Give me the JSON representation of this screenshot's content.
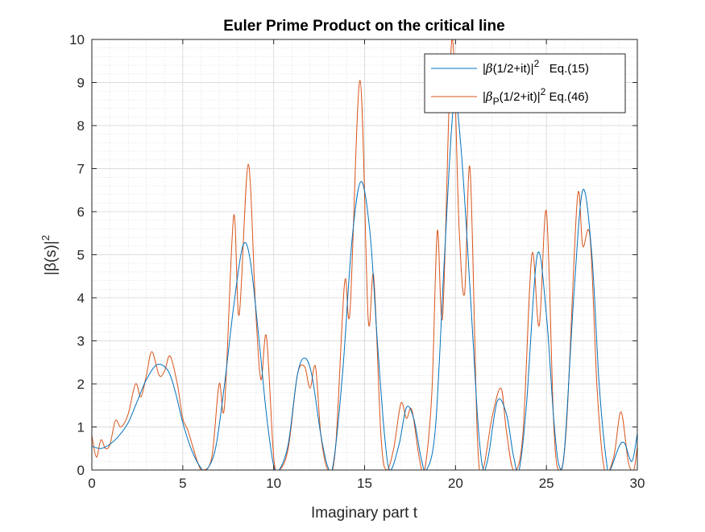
{
  "chart_data": {
    "type": "line",
    "title": "Euler Prime Product on the critical line",
    "xlabel": "Imaginary part t",
    "ylabel_main": "|β(s)|",
    "ylabel_sup": "2",
    "xlim": [
      0,
      30
    ],
    "ylim": [
      0,
      10
    ],
    "xticks": [
      0,
      5,
      10,
      15,
      20,
      25,
      30
    ],
    "yticks": [
      0,
      1,
      2,
      3,
      4,
      5,
      6,
      7,
      8,
      9,
      10
    ],
    "grid": true,
    "minor_grid": true,
    "legend_position": "top-right",
    "series": [
      {
        "name": "|β(1/2+it)|2   Eq.(15)",
        "legend_parts": {
          "pre": "|",
          "greek": "β",
          "mid": "(1/2+it)|",
          "sup": "2",
          "post": "   Eq.(15)"
        },
        "color": "#0072BD",
        "points": [
          [
            0,
            0.55
          ],
          [
            0.5,
            0.5
          ],
          [
            1.0,
            0.6
          ],
          [
            1.5,
            0.8
          ],
          [
            2.0,
            1.1
          ],
          [
            2.5,
            1.6
          ],
          [
            3.0,
            2.1
          ],
          [
            3.6,
            2.45
          ],
          [
            4.2,
            2.3
          ],
          [
            4.6,
            1.8
          ],
          [
            5.0,
            1.1
          ],
          [
            5.5,
            0.45
          ],
          [
            6.0,
            0.05
          ],
          [
            6.3,
            0.0
          ],
          [
            6.8,
            0.5
          ],
          [
            7.3,
            2.0
          ],
          [
            7.8,
            3.8
          ],
          [
            8.3,
            5.2
          ],
          [
            8.7,
            4.9
          ],
          [
            9.2,
            3.0
          ],
          [
            9.6,
            1.3
          ],
          [
            10.0,
            0.1
          ],
          [
            10.3,
            0.0
          ],
          [
            10.8,
            0.6
          ],
          [
            11.3,
            2.2
          ],
          [
            11.7,
            2.6
          ],
          [
            12.1,
            2.2
          ],
          [
            12.6,
            0.8
          ],
          [
            13.0,
            0.05
          ],
          [
            13.3,
            0.2
          ],
          [
            13.8,
            2.3
          ],
          [
            14.3,
            5.3
          ],
          [
            14.8,
            6.7
          ],
          [
            15.3,
            5.5
          ],
          [
            15.7,
            3.0
          ],
          [
            16.1,
            0.8
          ],
          [
            16.4,
            0.0
          ],
          [
            16.9,
            0.6
          ],
          [
            17.3,
            1.45
          ],
          [
            17.7,
            1.2
          ],
          [
            18.1,
            0.3
          ],
          [
            18.4,
            0.0
          ],
          [
            18.9,
            1.0
          ],
          [
            19.4,
            5.0
          ],
          [
            19.9,
            8.5
          ],
          [
            20.3,
            7.5
          ],
          [
            20.8,
            4.2
          ],
          [
            21.2,
            1.3
          ],
          [
            21.5,
            0.05
          ],
          [
            21.8,
            0.3
          ],
          [
            22.3,
            1.6
          ],
          [
            22.8,
            1.3
          ],
          [
            23.2,
            0.3
          ],
          [
            23.5,
            0.0
          ],
          [
            23.9,
            1.5
          ],
          [
            24.5,
            5.0
          ],
          [
            25.0,
            3.6
          ],
          [
            25.4,
            1.2
          ],
          [
            25.7,
            0.1
          ],
          [
            26.0,
            0.5
          ],
          [
            26.5,
            4.0
          ],
          [
            27.0,
            6.5
          ],
          [
            27.5,
            5.0
          ],
          [
            27.9,
            2.0
          ],
          [
            28.3,
            0.2
          ],
          [
            28.5,
            0.0
          ],
          [
            29.0,
            0.55
          ],
          [
            29.3,
            0.62
          ],
          [
            29.7,
            0.2
          ],
          [
            30.0,
            0.85
          ]
        ]
      },
      {
        "name": "|βP(1/2+it)|2 Eq.(46)",
        "legend_parts": {
          "pre": "|",
          "greek": "β",
          "sub": "P",
          "mid": "(1/2+it)|",
          "sup": "2",
          "post": " Eq.(46)"
        },
        "color": "#D95319",
        "points": [
          [
            0,
            0.8
          ],
          [
            0.25,
            0.3
          ],
          [
            0.5,
            0.7
          ],
          [
            0.75,
            0.5
          ],
          [
            1.0,
            0.6
          ],
          [
            1.3,
            1.15
          ],
          [
            1.6,
            1.0
          ],
          [
            2.0,
            1.3
          ],
          [
            2.4,
            2.0
          ],
          [
            2.7,
            1.7
          ],
          [
            3.0,
            2.2
          ],
          [
            3.3,
            2.75
          ],
          [
            3.7,
            2.2
          ],
          [
            4.0,
            2.3
          ],
          [
            4.3,
            2.65
          ],
          [
            4.7,
            2.0
          ],
          [
            5.0,
            1.2
          ],
          [
            5.3,
            0.9
          ],
          [
            5.8,
            0.2
          ],
          [
            6.1,
            0.0
          ],
          [
            6.6,
            0.3
          ],
          [
            7.0,
            2.0
          ],
          [
            7.3,
            1.5
          ],
          [
            7.8,
            5.9
          ],
          [
            8.1,
            3.6
          ],
          [
            8.6,
            7.1
          ],
          [
            9.0,
            3.8
          ],
          [
            9.3,
            2.1
          ],
          [
            9.6,
            3.1
          ],
          [
            10.0,
            0.3
          ],
          [
            10.3,
            0.0
          ],
          [
            10.8,
            0.5
          ],
          [
            11.3,
            2.2
          ],
          [
            11.7,
            2.4
          ],
          [
            12.0,
            1.9
          ],
          [
            12.3,
            2.4
          ],
          [
            12.6,
            0.8
          ],
          [
            13.0,
            0.0
          ],
          [
            13.4,
            0.5
          ],
          [
            13.9,
            4.35
          ],
          [
            14.2,
            3.7
          ],
          [
            14.75,
            9.05
          ],
          [
            15.2,
            3.5
          ],
          [
            15.5,
            4.5
          ],
          [
            15.9,
            0.8
          ],
          [
            16.2,
            0.0
          ],
          [
            16.6,
            0.5
          ],
          [
            17.0,
            1.55
          ],
          [
            17.3,
            1.2
          ],
          [
            17.6,
            1.4
          ],
          [
            18.0,
            0.3
          ],
          [
            18.3,
            0.0
          ],
          [
            18.7,
            1.8
          ],
          [
            19.0,
            5.55
          ],
          [
            19.3,
            3.6
          ],
          [
            19.8,
            10.0
          ],
          [
            20.2,
            5.6
          ],
          [
            20.5,
            4.1
          ],
          [
            20.8,
            7.0
          ],
          [
            21.2,
            0.8
          ],
          [
            21.5,
            0.0
          ],
          [
            22.0,
            1.2
          ],
          [
            22.5,
            1.9
          ],
          [
            22.8,
            0.9
          ],
          [
            23.2,
            0.0
          ],
          [
            23.7,
            0.8
          ],
          [
            24.2,
            5.0
          ],
          [
            24.6,
            3.35
          ],
          [
            25.0,
            6.0
          ],
          [
            25.4,
            1.1
          ],
          [
            25.7,
            0.0
          ],
          [
            26.1,
            1.0
          ],
          [
            26.7,
            6.3
          ],
          [
            27.0,
            5.2
          ],
          [
            27.4,
            5.4
          ],
          [
            27.8,
            1.8
          ],
          [
            28.2,
            0.0
          ],
          [
            28.7,
            0.3
          ],
          [
            29.1,
            1.35
          ],
          [
            29.5,
            0.2
          ],
          [
            29.8,
            0.0
          ],
          [
            30.0,
            0.55
          ]
        ]
      }
    ]
  }
}
